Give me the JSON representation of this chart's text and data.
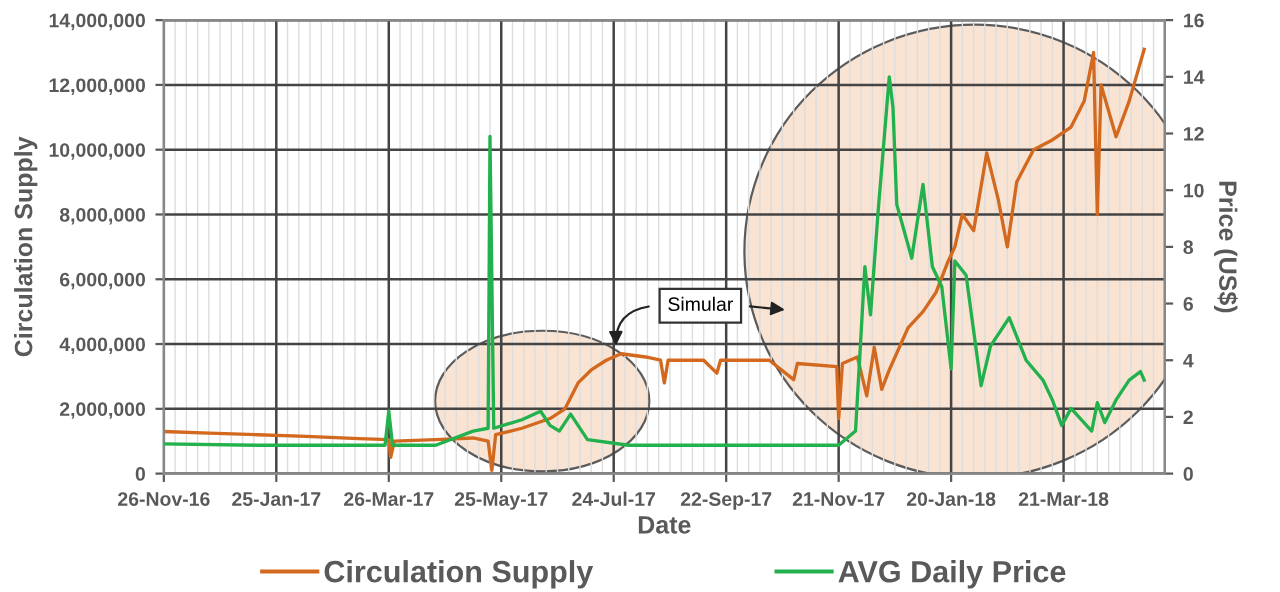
{
  "chart_data": {
    "type": "line",
    "xlabel": "Date",
    "ylabel": "Circulation Supply",
    "y2label": "Price (US$)",
    "annotations": [
      "Simular"
    ],
    "xlim": [
      "2016-11-26",
      "2018-05-14"
    ],
    "xticks": [
      {
        "value": "2016-11-26",
        "label": "26-Nov-16"
      },
      {
        "value": "2017-01-25",
        "label": "25-Jan-17"
      },
      {
        "value": "2017-03-26",
        "label": "26-Mar-17"
      },
      {
        "value": "2017-05-25",
        "label": "25-May-17"
      },
      {
        "value": "2017-07-24",
        "label": "24-Jul-17"
      },
      {
        "value": "2017-09-22",
        "label": "22-Sep-17"
      },
      {
        "value": "2017-11-21",
        "label": "21-Nov-17"
      },
      {
        "value": "2018-01-20",
        "label": "20-Jan-18"
      },
      {
        "value": "2018-03-21",
        "label": "21-Mar-18"
      }
    ],
    "ylim": [
      0,
      14000000
    ],
    "yticks": [
      {
        "value": 0,
        "label": "0"
      },
      {
        "value": 2000000,
        "label": "2,000,000"
      },
      {
        "value": 4000000,
        "label": "4,000,000"
      },
      {
        "value": 6000000,
        "label": "6,000,000"
      },
      {
        "value": 8000000,
        "label": "8,000,000"
      },
      {
        "value": 10000000,
        "label": "10,000,000"
      },
      {
        "value": 12000000,
        "label": "12,000,000"
      },
      {
        "value": 14000000,
        "label": "14,000,000"
      }
    ],
    "y2lim": [
      0,
      16
    ],
    "y2ticks": [
      0,
      2,
      4,
      6,
      8,
      10,
      12,
      14,
      16
    ],
    "grid": true,
    "legend": "bottom",
    "series": [
      {
        "name": "Circulation Supply",
        "color": "#d2691e",
        "x": [
          "2016-11-26",
          "2016-12-20",
          "2017-01-15",
          "2017-02-10",
          "2017-03-10",
          "2017-03-26",
          "2017-03-27",
          "2017-03-29",
          "2017-04-20",
          "2017-05-10",
          "2017-05-18",
          "2017-05-20",
          "2017-05-22",
          "2017-06-05",
          "2017-06-20",
          "2017-06-28",
          "2017-07-05",
          "2017-07-12",
          "2017-07-20",
          "2017-07-28",
          "2017-08-10",
          "2017-08-18",
          "2017-08-20",
          "2017-08-22",
          "2017-09-10",
          "2017-09-17",
          "2017-09-19",
          "2017-10-15",
          "2017-10-28",
          "2017-10-30",
          "2017-11-20",
          "2017-11-21",
          "2017-11-23",
          "2017-12-01",
          "2017-12-06",
          "2017-12-10",
          "2017-12-14",
          "2017-12-18",
          "2017-12-28",
          "2018-01-05",
          "2018-01-12",
          "2018-01-18",
          "2018-01-22",
          "2018-01-26",
          "2018-02-01",
          "2018-02-08",
          "2018-02-14",
          "2018-02-19",
          "2018-02-24",
          "2018-03-05",
          "2018-03-15",
          "2018-03-25",
          "2018-04-01",
          "2018-04-06",
          "2018-04-08",
          "2018-04-10",
          "2018-04-18",
          "2018-04-25",
          "2018-05-03"
        ],
        "values": [
          1300000,
          1250000,
          1200000,
          1150000,
          1080000,
          1050000,
          500000,
          1000000,
          1050000,
          1100000,
          1000000,
          100000,
          1200000,
          1400000,
          1700000,
          2000000,
          2800000,
          3200000,
          3500000,
          3700000,
          3600000,
          3500000,
          2800000,
          3500000,
          3500000,
          3100000,
          3500000,
          3500000,
          2900000,
          3400000,
          3300000,
          1700000,
          3400000,
          3600000,
          2400000,
          3900000,
          2600000,
          3200000,
          4500000,
          5000000,
          5600000,
          6500000,
          7000000,
          8000000,
          7500000,
          9900000,
          8500000,
          7000000,
          9000000,
          10000000,
          10300000,
          10700000,
          11500000,
          13000000,
          8000000,
          12000000,
          10400000,
          11500000,
          13100000
        ]
      },
      {
        "name": "AVG Daily Price",
        "color": "#22b14c",
        "axis": "y2",
        "x": [
          "2016-11-26",
          "2017-01-15",
          "2017-03-24",
          "2017-03-26",
          "2017-03-28",
          "2017-04-20",
          "2017-05-10",
          "2017-05-18",
          "2017-05-19",
          "2017-05-21",
          "2017-06-05",
          "2017-06-15",
          "2017-06-20",
          "2017-06-25",
          "2017-07-01",
          "2017-07-10",
          "2017-08-01",
          "2017-09-01",
          "2017-10-01",
          "2017-11-20",
          "2017-11-21",
          "2017-11-30",
          "2017-12-05",
          "2017-12-08",
          "2017-12-12",
          "2017-12-18",
          "2017-12-20",
          "2017-12-22",
          "2017-12-30",
          "2018-01-05",
          "2018-01-10",
          "2018-01-15",
          "2018-01-20",
          "2018-01-22",
          "2018-01-28",
          "2018-02-05",
          "2018-02-10",
          "2018-02-20",
          "2018-03-01",
          "2018-03-10",
          "2018-03-15",
          "2018-03-20",
          "2018-03-25",
          "2018-04-05",
          "2018-04-08",
          "2018-04-12",
          "2018-04-18",
          "2018-04-25",
          "2018-05-01",
          "2018-05-03"
        ],
        "values": [
          1.05,
          1.0,
          1.0,
          2.2,
          1.0,
          1.0,
          1.5,
          1.6,
          11.9,
          1.6,
          1.9,
          2.2,
          1.7,
          1.5,
          2.1,
          1.2,
          1.0,
          1.0,
          1.0,
          1.0,
          1.0,
          1.5,
          7.3,
          5.6,
          9.2,
          14.0,
          12.9,
          9.5,
          7.6,
          10.2,
          7.3,
          6.6,
          3.7,
          7.5,
          7.0,
          3.1,
          4.5,
          5.5,
          4.0,
          3.3,
          2.6,
          1.7,
          2.3,
          1.5,
          2.5,
          1.8,
          2.6,
          3.3,
          3.6,
          3.3
        ]
      }
    ]
  }
}
